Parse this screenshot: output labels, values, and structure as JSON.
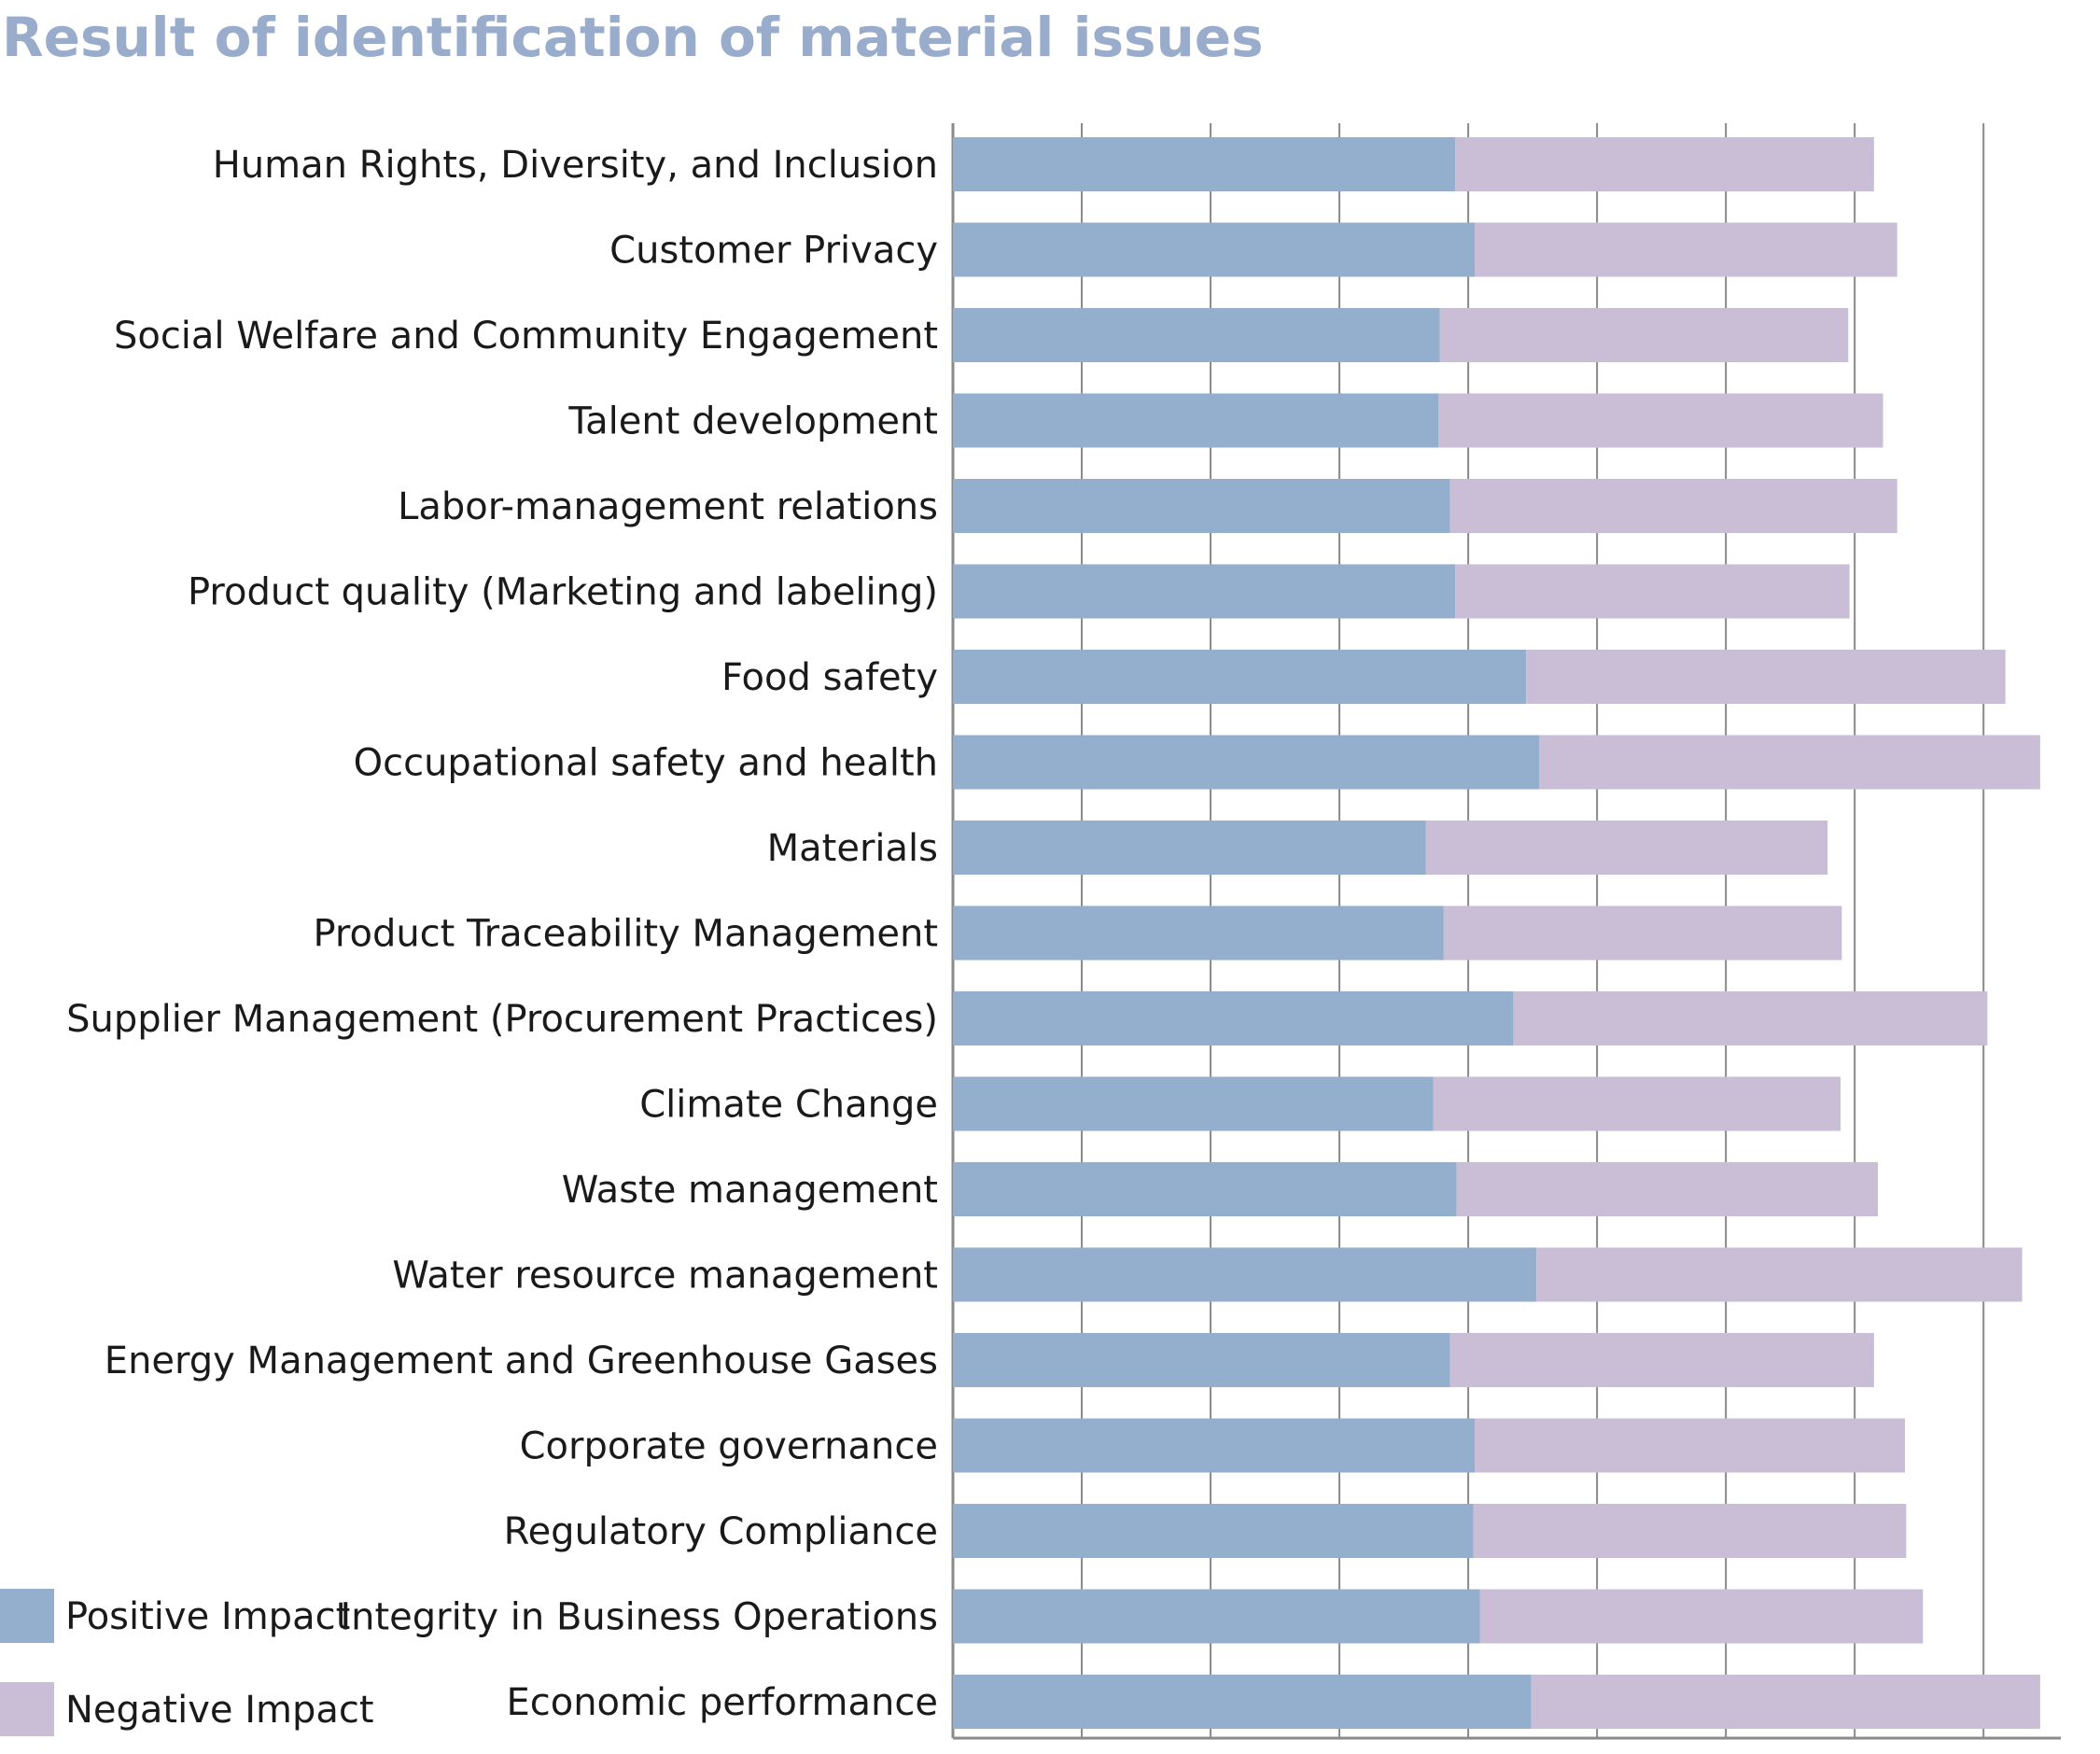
{
  "chart_data": {
    "type": "bar",
    "orientation": "horizontal",
    "stacked": true,
    "title": "Result of identification of material issues",
    "xlabel": "",
    "ylabel": "",
    "xlim": [
      0,
      8.6
    ],
    "grid": true,
    "tick_labels_shown": false,
    "legend_position": "bottom-left",
    "colors": {
      "positive": "#94aece",
      "negative": "#c9bed6",
      "grid": "#8a8a8a",
      "title": "#9aaccc"
    },
    "categories": [
      "Human Rights, Diversity, and Inclusion",
      "Customer Privacy",
      "Social Welfare and Community Engagement",
      "Talent development",
      "Labor-management relations",
      "Product quality (Marketing and labeling)",
      "Food safety",
      "Occupational safety and health",
      "Materials",
      "Product Traceability Management",
      "Supplier Management (Procurement Practices)",
      "Climate Change",
      "Waste management",
      "Water resource management",
      "Energy Management and Greenhouse Gases",
      "Corporate governance",
      "Regulatory Compliance",
      "Integrity in Business Operations",
      "Economic performance"
    ],
    "series": [
      {
        "name": "Positive Impact",
        "values": [
          3.9,
          4.05,
          3.78,
          3.77,
          3.86,
          3.9,
          4.45,
          4.55,
          3.67,
          3.81,
          4.35,
          3.73,
          3.91,
          4.53,
          3.86,
          4.05,
          4.04,
          4.09,
          4.49
        ]
      },
      {
        "name": "Negative Impact",
        "values": [
          3.25,
          3.28,
          3.17,
          3.45,
          3.47,
          3.06,
          3.72,
          3.89,
          3.12,
          3.09,
          3.68,
          3.16,
          3.27,
          3.77,
          3.29,
          3.34,
          3.36,
          3.44,
          3.95
        ]
      }
    ]
  }
}
